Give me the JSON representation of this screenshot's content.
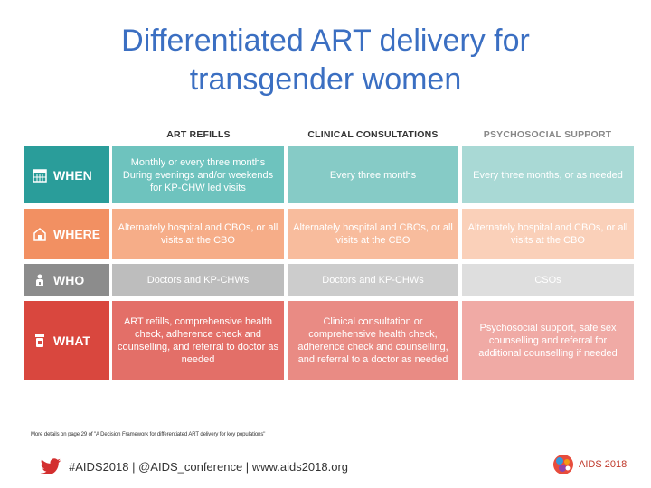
{
  "title": {
    "line1": "Differentiated ART delivery for",
    "line2": "transgender women"
  },
  "columns": [
    "ART REFILLS",
    "CLINICAL CONSULTATIONS",
    "PSYCHOSOCIAL SUPPORT"
  ],
  "rows": [
    {
      "label": "WHEN",
      "icon": "calendar-icon",
      "cells": [
        [
          "Monthly or every three months",
          "During evenings and/or weekends for KP-CHW led visits"
        ],
        [
          "Every three months"
        ],
        [
          "Every three months, or as needed"
        ]
      ]
    },
    {
      "label": "WHERE",
      "icon": "building-icon",
      "cells": [
        [
          "Alternately hospital and CBOs, or all visits at the CBO"
        ],
        [
          "Alternately hospital and CBOs, or all visits at the CBO"
        ],
        [
          "Alternately hospital and CBOs, or all visits at the CBO"
        ]
      ]
    },
    {
      "label": "WHO",
      "icon": "person-icon",
      "cells": [
        [
          "Doctors and KP-CHWs"
        ],
        [
          "Doctors and KP-CHWs"
        ],
        [
          "CSOs"
        ]
      ]
    },
    {
      "label": "WHAT",
      "icon": "pill-bottle-icon",
      "cells": [
        [
          "ART refills, comprehensive health check, adherence check and counselling, and referral to doctor as needed"
        ],
        [
          "Clinical consultation or comprehensive health check, adherence check and counselling, and referral to a doctor as needed"
        ],
        [
          "Psychosocial support, safe sex counselling and referral for additional counselling if needed"
        ]
      ]
    }
  ],
  "footnote": "More details on page 29 of \"A Decision Framework for differentiated ART delivery for key populations\"",
  "footer": {
    "text": "#AIDS2018 | @AIDS_conference | www.aids2018.org",
    "icon": "twitter-bird-icon"
  },
  "logo": {
    "text": "AIDS 2018",
    "icon": "aids2018-logo-icon"
  },
  "colors": {
    "title": "#3b6fc2",
    "when": "#2a9d9a",
    "where": "#f29062",
    "who": "#8c8c8c",
    "what": "#d9473e"
  }
}
